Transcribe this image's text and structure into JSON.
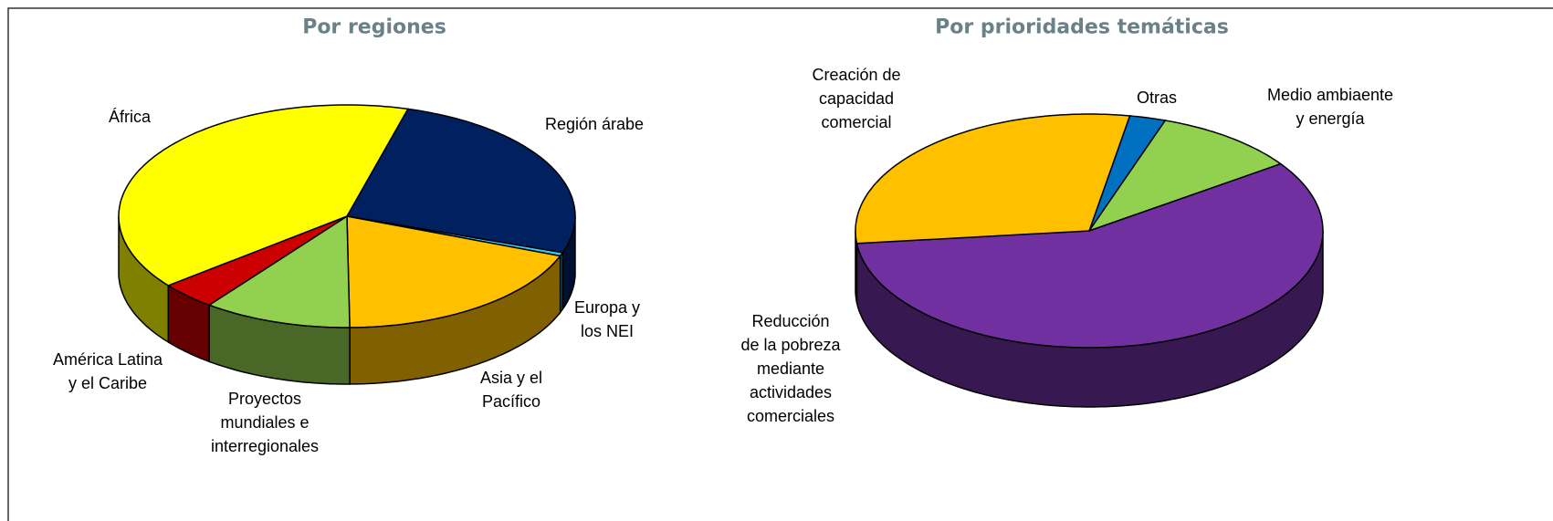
{
  "chart_data": [
    {
      "type": "pie3d",
      "title": "Por regiones",
      "categories": [
        "Región árabe",
        "Europa y\nlos NEI",
        "Asia y el\nPacífico",
        "Proyectos\nmundiales e\ninterregionales",
        "América Latina\ny el Caribe",
        "África"
      ],
      "values": [
        26,
        0.5,
        19,
        10.5,
        4,
        40
      ],
      "colors": [
        "#002060",
        "#33ccff",
        "#ffc000",
        "#92d050",
        "#cc0000",
        "#ffff00"
      ]
    },
    {
      "type": "pie3d",
      "title": "Por prioridades temáticas",
      "categories": [
        "Otras",
        "Medio ambiaente\ny energía",
        "Reducción\nde la pobreza\nmediante\nactividades\ncomerciales",
        "Creación de\ncapacidad\ncomercial"
      ],
      "values": [
        2.5,
        10,
        58,
        29.5
      ],
      "colors": [
        "#0070c0",
        "#92d050",
        "#7030a0",
        "#ffc000"
      ]
    }
  ]
}
